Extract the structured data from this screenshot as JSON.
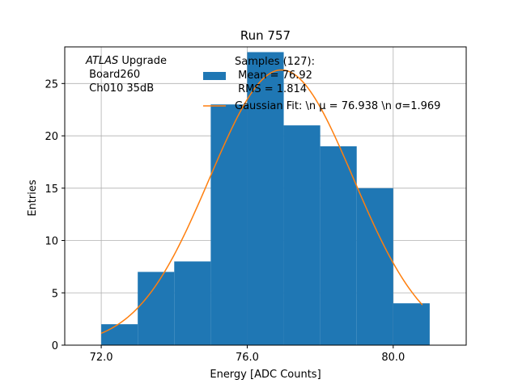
{
  "chart_data": {
    "type": "bar",
    "title": "Run 757",
    "xlabel": "Energy [ADC Counts]",
    "ylabel": "Entries",
    "xlim": [
      71.0,
      82.0
    ],
    "ylim": [
      0,
      28.5
    ],
    "grid": true,
    "x_ticks": [
      72.0,
      76.0,
      80.0
    ],
    "x_tick_labels": [
      "72.0",
      "76.0",
      "80.0"
    ],
    "y_ticks": [
      0,
      5,
      10,
      15,
      20,
      25
    ],
    "y_tick_labels": [
      "0",
      "5",
      "10",
      "15",
      "20",
      "25"
    ],
    "bins": [
      {
        "x0": 72,
        "x1": 73,
        "count": 2
      },
      {
        "x0": 73,
        "x1": 74,
        "count": 7
      },
      {
        "x0": 74,
        "x1": 75,
        "count": 8
      },
      {
        "x0": 75,
        "x1": 76,
        "count": 23
      },
      {
        "x0": 76,
        "x1": 77,
        "count": 28
      },
      {
        "x0": 77,
        "x1": 78,
        "count": 21
      },
      {
        "x0": 78,
        "x1": 79,
        "count": 19
      },
      {
        "x0": 79,
        "x1": 80,
        "count": 15
      },
      {
        "x0": 80,
        "x1": 81,
        "count": 4
      }
    ],
    "fit": {
      "type": "gaussian",
      "mu": 76.938,
      "sigma": 1.969,
      "amplitude": 26.3,
      "x_range": [
        72.0,
        80.8
      ]
    },
    "colors": {
      "bars": "#1f77b4",
      "fit": "#ff7f0e",
      "grid": "#b0b0b0"
    },
    "annotation": {
      "italic": "ATLAS",
      "rest": " Upgrade",
      "line2": " Board260",
      "line3": " Ch010 35dB"
    },
    "legend": {
      "placement": "top-right",
      "entries": [
        {
          "label_lines": [
            "Samples (127):",
            " Mean = 76.92",
            " RMS = 1.814"
          ],
          "series": "histogram"
        },
        {
          "label_lines": [
            "Gaussian Fit: \\n μ = 76.938 \\n σ=1.969"
          ],
          "series": "fit"
        }
      ]
    }
  }
}
